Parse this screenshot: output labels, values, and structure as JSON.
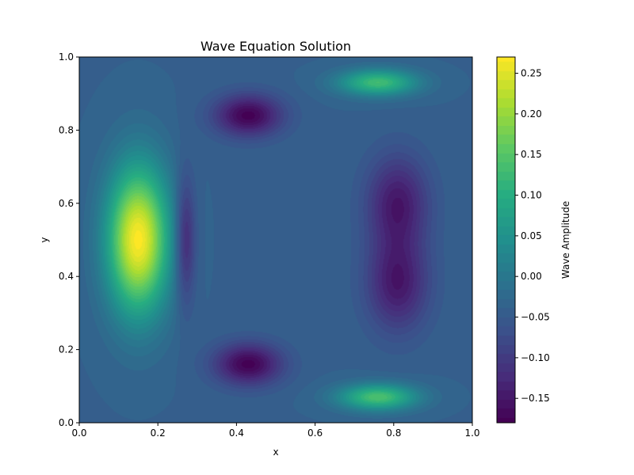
{
  "chart_data": {
    "type": "heatmap",
    "title": "Wave Equation Solution",
    "xlabel": "x",
    "ylabel": "y",
    "xlim": [
      0.0,
      1.0
    ],
    "ylim": [
      0.0,
      1.0
    ],
    "x_ticks": [
      "0.0",
      "0.2",
      "0.4",
      "0.6",
      "0.8",
      "1.0"
    ],
    "y_ticks": [
      "0.0",
      "0.2",
      "0.4",
      "0.6",
      "0.8",
      "1.0"
    ],
    "colorbar": {
      "label": "Wave Amplitude",
      "range": [
        -0.18,
        0.27
      ],
      "ticks": [
        "−0.15",
        "−0.10",
        "−0.05",
        "0.00",
        "0.05",
        "0.10",
        "0.15",
        "0.20",
        "0.25"
      ],
      "tick_values": [
        -0.15,
        -0.1,
        -0.05,
        0.0,
        0.05,
        0.1,
        0.15,
        0.2,
        0.25
      ]
    },
    "colormap": "viridis",
    "baseline_amplitude": -0.04,
    "features": [
      {
        "kind": "peak",
        "x": 0.15,
        "y": 0.5,
        "amplitude": 0.27,
        "sx": 0.055,
        "sy": 0.14
      },
      {
        "kind": "trough",
        "x": 0.43,
        "y": 0.84,
        "amplitude": -0.18,
        "sx": 0.06,
        "sy": 0.04
      },
      {
        "kind": "trough",
        "x": 0.43,
        "y": 0.16,
        "amplitude": -0.18,
        "sx": 0.06,
        "sy": 0.04
      },
      {
        "kind": "trough",
        "x": 0.27,
        "y": 0.5,
        "amplitude": -0.14,
        "sx": 0.018,
        "sy": 0.12
      },
      {
        "kind": "trough",
        "x": 0.81,
        "y": 0.6,
        "amplitude": -0.15,
        "sx": 0.055,
        "sy": 0.09
      },
      {
        "kind": "trough",
        "x": 0.81,
        "y": 0.38,
        "amplitude": -0.15,
        "sx": 0.055,
        "sy": 0.09
      },
      {
        "kind": "peak",
        "x": 0.76,
        "y": 0.93,
        "amplitude": 0.13,
        "sx": 0.07,
        "sy": 0.025
      },
      {
        "kind": "peak",
        "x": 0.76,
        "y": 0.07,
        "amplitude": 0.14,
        "sx": 0.07,
        "sy": 0.025
      }
    ]
  }
}
